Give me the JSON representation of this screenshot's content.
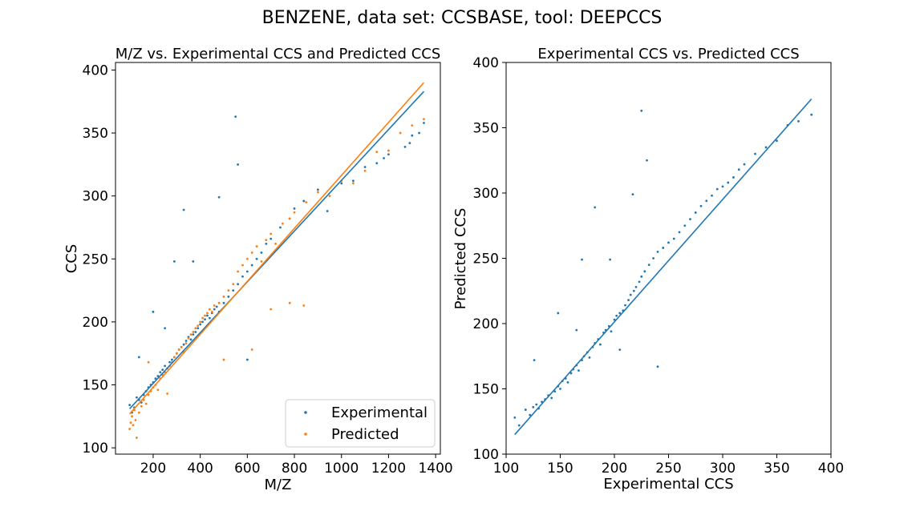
{
  "suptitle": "BENZENE, data set: CCSBASE, tool: DEEPCCS",
  "colors": {
    "experimental": "#1f77b4",
    "predicted": "#ff7f0e"
  },
  "chart_data": [
    {
      "type": "scatter",
      "title": "M/Z vs. Experimental CCS and Predicted CCS",
      "xlabel": "M/Z",
      "ylabel": "CCS",
      "xlim": [
        40,
        1420
      ],
      "ylim": [
        95,
        406
      ],
      "xticks": [
        200,
        400,
        600,
        800,
        1000,
        1200,
        1400
      ],
      "yticks": [
        100,
        150,
        200,
        250,
        300,
        350,
        400
      ],
      "grid": false,
      "legend_position": "lower-right",
      "series": [
        {
          "name": "Experimental",
          "color": "#1f77b4",
          "fit_line": {
            "x": [
              100,
              1350
            ],
            "y": [
              131,
              383
            ]
          },
          "points": [
            [
              100,
              134
            ],
            [
              110,
              128
            ],
            [
              120,
              132
            ],
            [
              130,
              140
            ],
            [
              140,
              138
            ],
            [
              150,
              136
            ],
            [
              160,
              142
            ],
            [
              170,
              145
            ],
            [
              180,
              148
            ],
            [
              190,
              150
            ],
            [
              200,
              152
            ],
            [
              210,
              155
            ],
            [
              220,
              157
            ],
            [
              230,
              160
            ],
            [
              240,
              162
            ],
            [
              250,
              165
            ],
            [
              260,
              163
            ],
            [
              270,
              168
            ],
            [
              280,
              170
            ],
            [
              290,
              172
            ],
            [
              300,
              175
            ],
            [
              310,
              178
            ],
            [
              320,
              180
            ],
            [
              330,
              182
            ],
            [
              340,
              185
            ],
            [
              350,
              188
            ],
            [
              360,
              186
            ],
            [
              370,
              190
            ],
            [
              380,
              192
            ],
            [
              390,
              195
            ],
            [
              400,
              198
            ],
            [
              410,
              200
            ],
            [
              420,
              202
            ],
            [
              430,
              205
            ],
            [
              440,
              203
            ],
            [
              450,
              207
            ],
            [
              460,
              210
            ],
            [
              470,
              212
            ],
            [
              480,
              208
            ],
            [
              500,
              215
            ],
            [
              520,
              220
            ],
            [
              540,
              225
            ],
            [
              560,
              230
            ],
            [
              580,
              236
            ],
            [
              600,
              240
            ],
            [
              620,
              245
            ],
            [
              640,
              250
            ],
            [
              660,
              255
            ],
            [
              680,
              262
            ],
            [
              700,
              266
            ],
            [
              740,
              275
            ],
            [
              780,
              282
            ],
            [
              800,
              290
            ],
            [
              840,
              296
            ],
            [
              900,
              305
            ],
            [
              940,
              288
            ],
            [
              1000,
              310
            ],
            [
              1050,
              312
            ],
            [
              1100,
              323
            ],
            [
              1150,
              326
            ],
            [
              1180,
              330
            ],
            [
              1200,
              333
            ],
            [
              1270,
              339
            ],
            [
              1290,
              342
            ],
            [
              1300,
              348
            ],
            [
              1330,
              350
            ],
            [
              1350,
              358
            ],
            [
              330,
              289
            ],
            [
              480,
              299
            ],
            [
              560,
              325
            ],
            [
              550,
              363
            ],
            [
              290,
              248
            ],
            [
              370,
              248
            ],
            [
              200,
              208
            ],
            [
              140,
              172
            ],
            [
              250,
              195
            ],
            [
              600,
              170
            ]
          ]
        },
        {
          "name": "Predicted",
          "color": "#ff7f0e",
          "fit_line": {
            "x": [
              100,
              1350
            ],
            "y": [
              127,
              390
            ]
          },
          "points": [
            [
              100,
              115
            ],
            [
              105,
              120
            ],
            [
              110,
              125
            ],
            [
              115,
              118
            ],
            [
              120,
              130
            ],
            [
              125,
              122
            ],
            [
              130,
              108
            ],
            [
              140,
              128
            ],
            [
              150,
              133
            ],
            [
              160,
              138
            ],
            [
              170,
              135
            ],
            [
              180,
              142
            ],
            [
              190,
              145
            ],
            [
              200,
              148
            ],
            [
              210,
              150
            ],
            [
              220,
              146
            ],
            [
              230,
              155
            ],
            [
              240,
              158
            ],
            [
              250,
              160
            ],
            [
              260,
              163
            ],
            [
              270,
              165
            ],
            [
              280,
              168
            ],
            [
              290,
              172
            ],
            [
              300,
              175
            ],
            [
              310,
              178
            ],
            [
              320,
              180
            ],
            [
              330,
              176
            ],
            [
              340,
              183
            ],
            [
              350,
              187
            ],
            [
              360,
              190
            ],
            [
              370,
              192
            ],
            [
              380,
              195
            ],
            [
              390,
              197
            ],
            [
              400,
              200
            ],
            [
              410,
              203
            ],
            [
              420,
              205
            ],
            [
              430,
              207
            ],
            [
              440,
              210
            ],
            [
              450,
              208
            ],
            [
              460,
              213
            ],
            [
              480,
              215
            ],
            [
              500,
              220
            ],
            [
              520,
              225
            ],
            [
              540,
              230
            ],
            [
              560,
              240
            ],
            [
              580,
              245
            ],
            [
              600,
              250
            ],
            [
              620,
              255
            ],
            [
              640,
              260
            ],
            [
              660,
              248
            ],
            [
              680,
              265
            ],
            [
              700,
              270
            ],
            [
              720,
              262
            ],
            [
              750,
              278
            ],
            [
              780,
              282
            ],
            [
              800,
              287
            ],
            [
              850,
              295
            ],
            [
              900,
              303
            ],
            [
              950,
              300
            ],
            [
              1000,
              312
            ],
            [
              1050,
              310
            ],
            [
              1100,
              320
            ],
            [
              1150,
              335
            ],
            [
              1200,
              336
            ],
            [
              1250,
              350
            ],
            [
              1300,
              356
            ],
            [
              1350,
              361
            ],
            [
              840,
              213
            ],
            [
              780,
              215
            ],
            [
              620,
              178
            ],
            [
              500,
              170
            ],
            [
              700,
              210
            ],
            [
              180,
              168
            ],
            [
              260,
              143
            ]
          ]
        }
      ]
    },
    {
      "type": "scatter",
      "title": "Experimental CCS vs. Predicted CCS",
      "xlabel": "Experimental CCS",
      "ylabel": "Predicted CCS",
      "xlim": [
        100,
        400
      ],
      "ylim": [
        100,
        400
      ],
      "xticks": [
        100,
        150,
        200,
        250,
        300,
        350,
        400
      ],
      "yticks": [
        100,
        150,
        200,
        250,
        300,
        350,
        400
      ],
      "grid": false,
      "series": [
        {
          "color": "#1f77b4",
          "fit_line": {
            "x": [
              108,
              382
            ],
            "y": [
              115,
              372
            ]
          },
          "points": [
            [
              108,
              128
            ],
            [
              112,
              122
            ],
            [
              118,
              134
            ],
            [
              122,
              130
            ],
            [
              125,
              136
            ],
            [
              128,
              138
            ],
            [
              130,
              135
            ],
            [
              133,
              140
            ],
            [
              136,
              142
            ],
            [
              139,
              145
            ],
            [
              142,
              143
            ],
            [
              145,
              148
            ],
            [
              148,
              152
            ],
            [
              150,
              150
            ],
            [
              152,
              156
            ],
            [
              155,
              158
            ],
            [
              157,
              155
            ],
            [
              160,
              162
            ],
            [
              162,
              165
            ],
            [
              165,
              168
            ],
            [
              167,
              164
            ],
            [
              170,
              172
            ],
            [
              172,
              175
            ],
            [
              175,
              178
            ],
            [
              177,
              174
            ],
            [
              180,
              182
            ],
            [
              182,
              185
            ],
            [
              185,
              188
            ],
            [
              187,
              184
            ],
            [
              190,
              193
            ],
            [
              192,
              195
            ],
            [
              195,
              198
            ],
            [
              197,
              194
            ],
            [
              200,
              203
            ],
            [
              202,
              206
            ],
            [
              205,
              208
            ],
            [
              208,
              210
            ],
            [
              210,
              214
            ],
            [
              213,
              218
            ],
            [
              215,
              222
            ],
            [
              218,
              225
            ],
            [
              220,
              228
            ],
            [
              223,
              232
            ],
            [
              225,
              236
            ],
            [
              228,
              240
            ],
            [
              232,
              245
            ],
            [
              236,
              250
            ],
            [
              240,
              255
            ],
            [
              245,
              258
            ],
            [
              250,
              262
            ],
            [
              255,
              265
            ],
            [
              260,
              270
            ],
            [
              265,
              275
            ],
            [
              270,
              280
            ],
            [
              275,
              285
            ],
            [
              280,
              290
            ],
            [
              285,
              294
            ],
            [
              290,
              298
            ],
            [
              295,
              303
            ],
            [
              300,
              305
            ],
            [
              305,
              308
            ],
            [
              310,
              312
            ],
            [
              315,
              318
            ],
            [
              320,
              322
            ],
            [
              330,
              330
            ],
            [
              340,
              335
            ],
            [
              350,
              340
            ],
            [
              360,
              352
            ],
            [
              370,
              355
            ],
            [
              382,
              360
            ],
            [
              225,
              363
            ],
            [
              230,
              325
            ],
            [
              217,
              299
            ],
            [
              182,
              289
            ],
            [
              170,
              249
            ],
            [
              196,
              249
            ],
            [
              148,
              208
            ],
            [
              126,
              172
            ],
            [
              240,
              167
            ],
            [
              165,
              195
            ],
            [
              205,
              180
            ]
          ]
        }
      ]
    }
  ]
}
